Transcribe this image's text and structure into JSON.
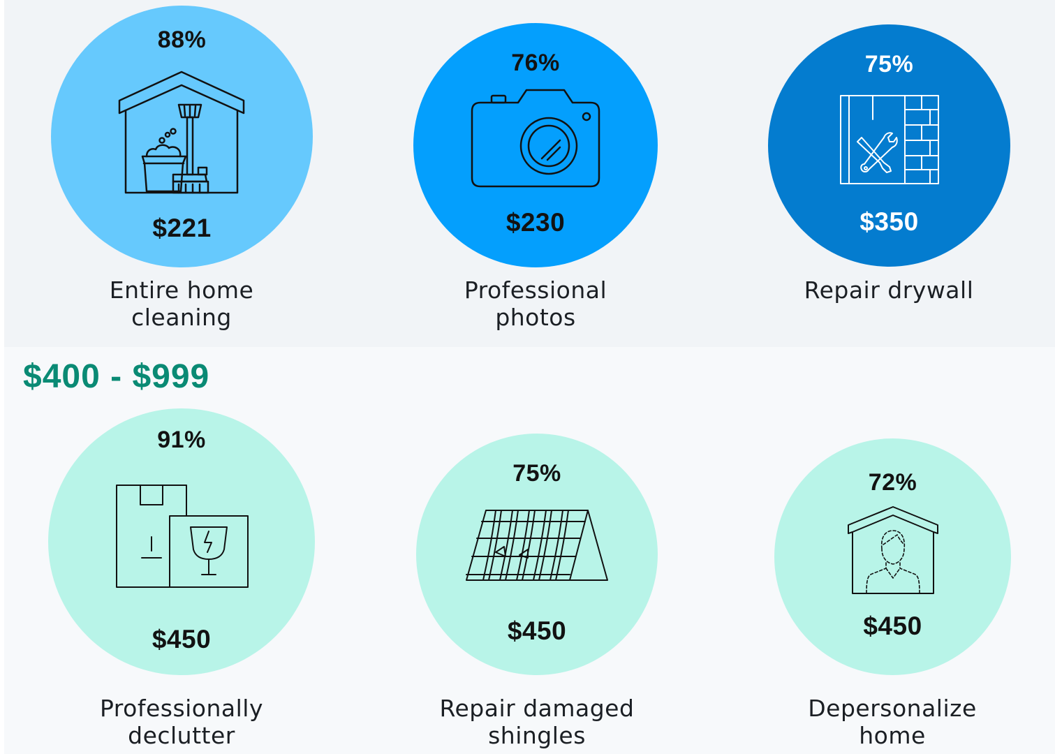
{
  "colors": {
    "light_blue": "#66c9fd",
    "mid_blue": "#049ffd",
    "dark_blue": "#047ccf",
    "mint": "#b8f4e8",
    "teal_heading": "#0a8a74",
    "text_dark": "#121212",
    "text_white": "#ffffff"
  },
  "top_row": [
    {
      "percent": "88%",
      "price": "$221",
      "label_line1": "Entire home",
      "label_line2": "cleaning",
      "icon": "house-cleaning-icon"
    },
    {
      "percent": "76%",
      "price": "$230",
      "label_line1": "Professional",
      "label_line2": "photos",
      "icon": "camera-icon"
    },
    {
      "percent": "75%",
      "price": "$350",
      "label_line1": "Repair drywall",
      "label_line2": "",
      "icon": "drywall-repair-icon"
    }
  ],
  "range_heading": "$400 - $999",
  "bottom_row": [
    {
      "percent": "91%",
      "price": "$450",
      "label_line1": "Professionally",
      "label_line2": "declutter",
      "icon": "boxes-icon"
    },
    {
      "percent": "75%",
      "price": "$450",
      "label_line1": "Repair damaged",
      "label_line2": "shingles",
      "icon": "roof-shingles-icon"
    },
    {
      "percent": "72%",
      "price": "$450",
      "label_line1": "Depersonalize",
      "label_line2": "home",
      "icon": "person-house-icon"
    }
  ]
}
